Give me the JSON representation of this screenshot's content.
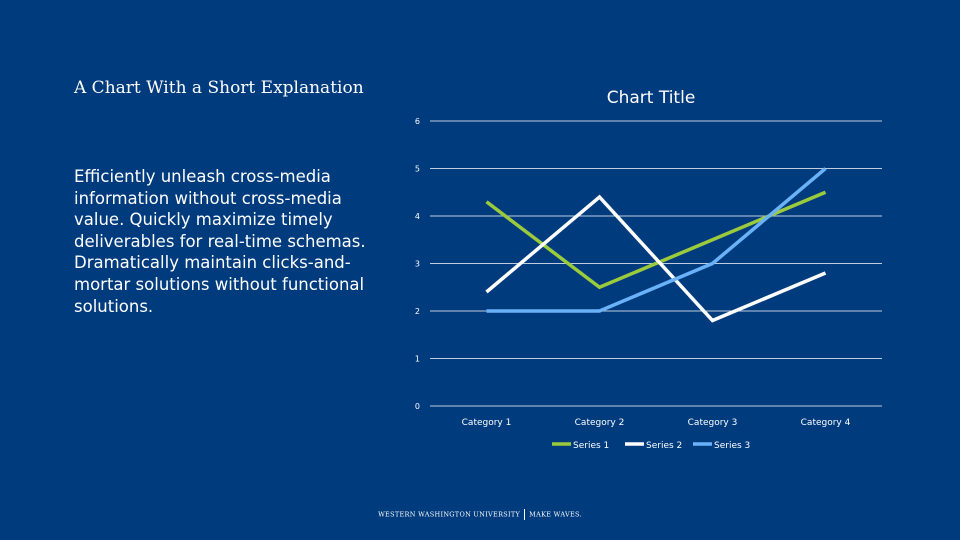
{
  "slide": {
    "title": "A Chart With a Short Explanation",
    "body": "Efficiently unleash cross-media information without cross-media value. Quickly maximize timely deliverables for real-time schemas. Dramatically maintain clicks-and-mortar solutions without functional solutions."
  },
  "footer": {
    "left": "WESTERN WASHINGTON UNIVERSITY",
    "right": "MAKE WAVES."
  },
  "colors": {
    "background": "#003B7E",
    "grid": "#FFFFFF",
    "series1": "#9BCB3C",
    "series2": "#FFFFFF",
    "series3": "#6AB2F7"
  },
  "chart_data": {
    "type": "line",
    "title": "Chart Title",
    "categories": [
      "Category 1",
      "Category 2",
      "Category 3",
      "Category 4"
    ],
    "series": [
      {
        "name": "Series 1",
        "values": [
          4.3,
          2.5,
          3.5,
          4.5
        ]
      },
      {
        "name": "Series 2",
        "values": [
          2.4,
          4.4,
          1.8,
          2.8
        ]
      },
      {
        "name": "Series 3",
        "values": [
          2.0,
          2.0,
          3.0,
          5.0
        ]
      }
    ],
    "ylim": [
      0,
      6
    ],
    "yticks": [
      "0",
      "1",
      "2",
      "3",
      "4",
      "5",
      "6"
    ],
    "grid": true,
    "legend": "bottom",
    "xlabel": "",
    "ylabel": ""
  }
}
